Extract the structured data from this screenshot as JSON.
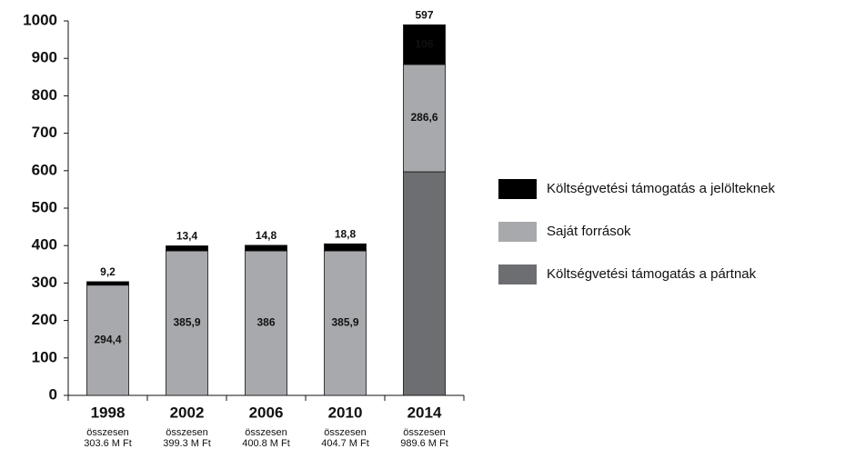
{
  "chart_data": {
    "type": "stacked_bar",
    "categories": [
      "1998",
      "2002",
      "2006",
      "2010",
      "2014"
    ],
    "total_word": "összesen",
    "total_labels": [
      "303.6 M Ft",
      "399.3 M Ft",
      "400.8 M Ft",
      "404.7 M Ft",
      "989.6 M Ft"
    ],
    "series": [
      {
        "name": "Költségvetési támogatás a pártnak",
        "color": "#6d6e71",
        "values": [
          0,
          0,
          0,
          0,
          597
        ],
        "value_labels": [
          null,
          null,
          null,
          null,
          "597"
        ]
      },
      {
        "name": "Saját források",
        "color": "#a7a9ac",
        "values": [
          294.4,
          385.9,
          386,
          385.9,
          286.6
        ],
        "value_labels": [
          "294,4",
          "385,9",
          "386",
          "385,9",
          "286,6"
        ]
      },
      {
        "name": "Költségvetési támogatás a jelölteknek",
        "color": "#000000",
        "values": [
          9.2,
          13.4,
          14.8,
          18.8,
          106
        ],
        "value_labels": [
          "9,2",
          "13,4",
          "14,8",
          "18,8",
          "106"
        ]
      }
    ],
    "ylim": [
      0,
      1000
    ],
    "yticks": [
      0,
      100,
      200,
      300,
      400,
      500,
      600,
      700,
      800,
      900,
      1000
    ],
    "legend": "right"
  }
}
